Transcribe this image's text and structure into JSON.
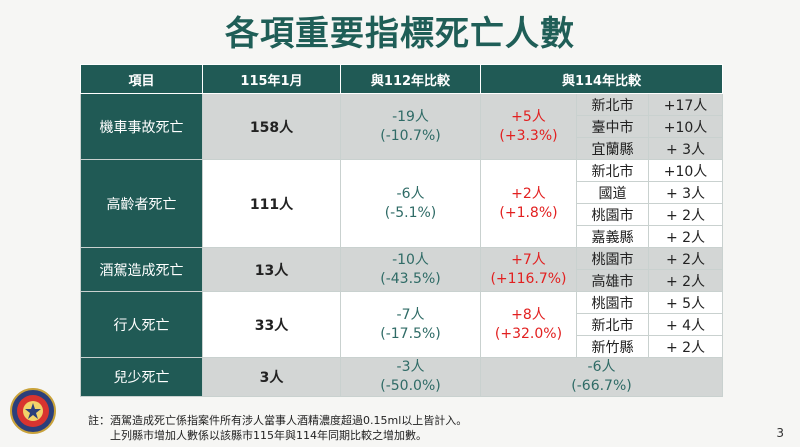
{
  "title": "各項重要指標死亡人數",
  "headers": [
    "項目",
    "115年1月",
    "與112年比較",
    "與114年比較"
  ],
  "rows": [
    {
      "item": "機車事故死亡",
      "current": "158人",
      "cmp112": [
        "-19人",
        "(-10.7%)"
      ],
      "cmp114": [
        "+5人",
        "(+3.3%)"
      ],
      "shade": true,
      "cities": [
        {
          "city": "新北市",
          "inc": "+17人"
        },
        {
          "city": "臺中市",
          "inc": "+10人"
        },
        {
          "city": "宜蘭縣",
          "inc": "+ 3人"
        }
      ]
    },
    {
      "item": "高齡者死亡",
      "current": "111人",
      "cmp112": [
        "-6人",
        "(-5.1%)"
      ],
      "cmp114": [
        "+2人",
        "(+1.8%)"
      ],
      "shade": false,
      "cities": [
        {
          "city": "新北市",
          "inc": "+10人"
        },
        {
          "city": "國道",
          "inc": "+ 3人"
        },
        {
          "city": "桃園市",
          "inc": "+ 2人"
        },
        {
          "city": "嘉義縣",
          "inc": "+ 2人"
        }
      ]
    },
    {
      "item": "酒駕造成死亡",
      "current": "13人",
      "cmp112": [
        "-10人",
        "(-43.5%)"
      ],
      "cmp114": [
        "+7人",
        "(+116.7%)"
      ],
      "shade": true,
      "cities": [
        {
          "city": "桃園市",
          "inc": "+ 2人"
        },
        {
          "city": "高雄市",
          "inc": "+ 2人"
        }
      ]
    },
    {
      "item": "行人死亡",
      "current": "33人",
      "cmp112": [
        "-7人",
        "(-17.5%)"
      ],
      "cmp114": [
        "+8人",
        "(+32.0%)"
      ],
      "shade": false,
      "cities": [
        {
          "city": "桃園市",
          "inc": "+ 5人"
        },
        {
          "city": "新北市",
          "inc": "+ 4人"
        },
        {
          "city": "新竹縣",
          "inc": "+ 2人"
        }
      ]
    },
    {
      "item": "兒少死亡",
      "current": "3人",
      "cmp112": [
        "-3人",
        "(-50.0%)"
      ],
      "cmp114": [
        "-6人",
        "(-66.7%)"
      ],
      "shade": true,
      "cities": []
    }
  ],
  "footnote": {
    "line1": "註：酒駕造成死亡係指案件所有涉人當事人酒精濃度超過0.15ml以上皆計入。",
    "line2": "　　上列縣市增加人數係以該縣市115年與114年同期比較之增加數。"
  },
  "page_number": "3",
  "colors": {
    "header": "#205a55",
    "increase": "#e22020",
    "decrease": "#2f6b66",
    "shade": "#d3d6d5"
  }
}
